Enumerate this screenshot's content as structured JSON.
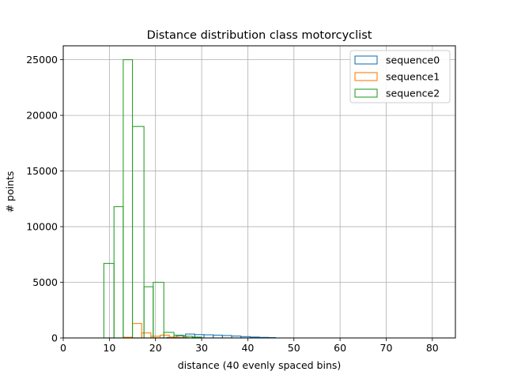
{
  "chart_data": {
    "type": "histogram",
    "title": "Distance distribution class motorcyclist",
    "xlabel": "distance (40 evenly spaced bins)",
    "ylabel": "# points",
    "xlim": [
      0,
      85
    ],
    "ylim": [
      0,
      26250
    ],
    "xticks": [
      0,
      10,
      20,
      30,
      40,
      50,
      60,
      70,
      80
    ],
    "yticks": [
      0,
      5000,
      10000,
      15000,
      20000,
      25000
    ],
    "grid": true,
    "legend_position": "top-right",
    "series": [
      {
        "name": "sequence0",
        "color": "#1f77b4",
        "bins": [
          [
            22.5,
            24.5,
            50
          ],
          [
            24.5,
            26.5,
            200
          ],
          [
            26.5,
            28.5,
            350
          ],
          [
            28.5,
            30.5,
            300
          ],
          [
            30.5,
            32.5,
            280
          ],
          [
            32.5,
            34.5,
            250
          ],
          [
            34.5,
            36.5,
            220
          ],
          [
            36.5,
            38.5,
            170
          ],
          [
            38.5,
            40.5,
            120
          ],
          [
            40.5,
            42.5,
            80
          ],
          [
            42.5,
            44.5,
            50
          ],
          [
            44.5,
            46,
            30
          ]
        ]
      },
      {
        "name": "sequence1",
        "color": "#ff7f0e",
        "bins": [
          [
            13,
            15,
            60
          ],
          [
            15,
            17,
            1300
          ],
          [
            17,
            19,
            450
          ],
          [
            19,
            21,
            150
          ],
          [
            21,
            23,
            250
          ],
          [
            23,
            25,
            80
          ],
          [
            25,
            27,
            40
          ]
        ]
      },
      {
        "name": "sequence2",
        "color": "#2ca02c",
        "bins": [
          [
            8.8,
            11,
            6700
          ],
          [
            11,
            13,
            11800
          ],
          [
            13,
            15,
            25000
          ],
          [
            15,
            17.5,
            19000
          ],
          [
            17.5,
            19.5,
            4600
          ],
          [
            19.5,
            21.8,
            5000
          ],
          [
            21.8,
            24,
            500
          ],
          [
            24,
            26,
            250
          ],
          [
            26,
            28,
            150
          ],
          [
            28,
            30,
            80
          ]
        ]
      }
    ]
  }
}
